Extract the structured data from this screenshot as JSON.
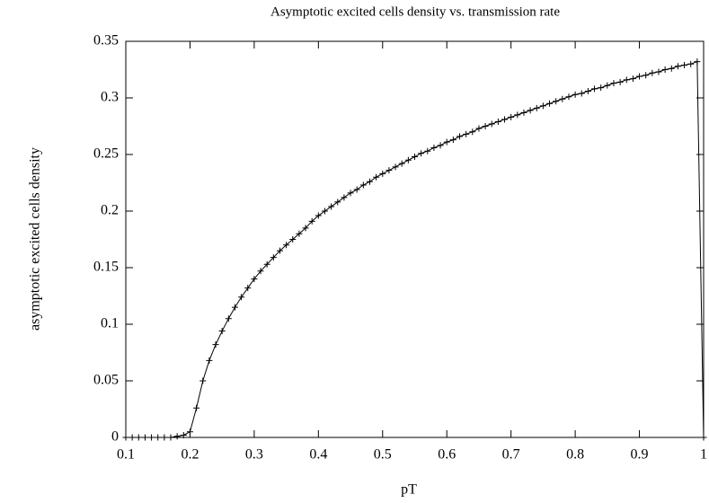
{
  "chart_data": {
    "type": "line",
    "title": "Asymptotic excited cells density vs. transmission rate",
    "xlabel": "pT",
    "ylabel": "asymptotic excited cells density",
    "x": [
      0.1,
      0.11,
      0.12,
      0.13,
      0.14,
      0.15,
      0.16,
      0.17,
      0.18,
      0.19,
      0.2,
      0.21,
      0.22,
      0.23,
      0.24,
      0.25,
      0.26,
      0.27,
      0.28,
      0.29,
      0.3,
      0.31,
      0.32,
      0.33,
      0.34,
      0.35,
      0.36,
      0.37,
      0.38,
      0.39,
      0.4,
      0.41,
      0.42,
      0.43,
      0.44,
      0.45,
      0.46,
      0.47,
      0.48,
      0.49,
      0.5,
      0.51,
      0.52,
      0.53,
      0.54,
      0.55,
      0.56,
      0.57,
      0.58,
      0.59,
      0.6,
      0.61,
      0.62,
      0.63,
      0.64,
      0.65,
      0.66,
      0.67,
      0.68,
      0.69,
      0.7,
      0.71,
      0.72,
      0.73,
      0.74,
      0.75,
      0.76,
      0.77,
      0.78,
      0.79,
      0.8,
      0.81,
      0.82,
      0.83,
      0.84,
      0.85,
      0.86,
      0.87,
      0.88,
      0.89,
      0.9,
      0.91,
      0.92,
      0.93,
      0.94,
      0.95,
      0.96,
      0.97,
      0.98,
      0.99,
      1.0
    ],
    "series": [
      {
        "color": "#000000",
        "values": [
          0,
          0,
          0,
          0,
          0,
          0,
          0,
          0,
          0.001,
          0.002,
          0.005,
          0.026,
          0.05,
          0.068,
          0.082,
          0.094,
          0.105,
          0.115,
          0.124,
          0.132,
          0.14,
          0.147,
          0.153,
          0.159,
          0.165,
          0.17,
          0.175,
          0.18,
          0.185,
          0.191,
          0.196,
          0.2,
          0.204,
          0.208,
          0.212,
          0.216,
          0.219,
          0.223,
          0.226,
          0.23,
          0.233,
          0.236,
          0.239,
          0.242,
          0.245,
          0.248,
          0.251,
          0.253,
          0.256,
          0.258,
          0.261,
          0.263,
          0.266,
          0.268,
          0.27,
          0.273,
          0.275,
          0.277,
          0.279,
          0.281,
          0.283,
          0.285,
          0.287,
          0.289,
          0.291,
          0.293,
          0.295,
          0.297,
          0.299,
          0.301,
          0.303,
          0.304,
          0.306,
          0.308,
          0.309,
          0.311,
          0.313,
          0.314,
          0.316,
          0.317,
          0.319,
          0.32,
          0.322,
          0.323,
          0.325,
          0.326,
          0.328,
          0.329,
          0.33,
          0.332,
          0
        ]
      }
    ],
    "xlim": [
      0.1,
      1
    ],
    "ylim": [
      0,
      0.35
    ],
    "xticks": [
      0.1,
      0.2,
      0.3,
      0.4,
      0.5,
      0.6,
      0.7,
      0.8,
      0.9,
      1
    ],
    "yticks": [
      0,
      0.05,
      0.1,
      0.15,
      0.2,
      0.25,
      0.3,
      0.35
    ],
    "grid": false
  }
}
